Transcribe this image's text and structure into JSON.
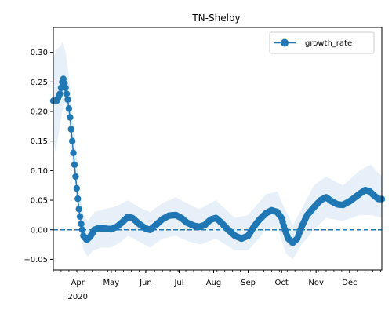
{
  "chart_data": {
    "type": "line",
    "title": "TN-Shelby",
    "xlabel": "",
    "ylabel": "",
    "xlim": [
      "2020-03-10",
      "2020-12-30"
    ],
    "ylim": [
      -0.068,
      0.342
    ],
    "y_ticks": [
      -0.05,
      0.0,
      0.05,
      0.1,
      0.15,
      0.2,
      0.25,
      0.3
    ],
    "y_tick_labels": [
      "−0.05",
      "0.00",
      "0.05",
      "0.10",
      "0.15",
      "0.20",
      "0.25",
      "0.30"
    ],
    "x_ticks": [
      {
        "date": "2020-04-01",
        "label": "Apr"
      },
      {
        "date": "2020-05-01",
        "label": "May"
      },
      {
        "date": "2020-06-01",
        "label": "Jun"
      },
      {
        "date": "2020-07-01",
        "label": "Jul"
      },
      {
        "date": "2020-08-01",
        "label": "Aug"
      },
      {
        "date": "2020-09-01",
        "label": "Sep"
      },
      {
        "date": "2020-10-01",
        "label": "Oct"
      },
      {
        "date": "2020-11-01",
        "label": "Nov"
      },
      {
        "date": "2020-12-01",
        "label": "Dec"
      }
    ],
    "x_year_label": "2020",
    "legend": {
      "position": "upper right",
      "entries": [
        "growth_rate"
      ]
    },
    "reference_line": {
      "y": 0.0,
      "style": "dashed"
    },
    "colors": {
      "series": "#1f77b4",
      "band": "#cfe0f1"
    },
    "series": [
      {
        "name": "growth_rate",
        "points": [
          [
            "2020-03-10",
            0.218
          ],
          [
            "2020-03-13",
            0.218
          ],
          [
            "2020-03-16",
            0.23
          ],
          [
            "2020-03-18",
            0.25
          ],
          [
            "2020-03-19",
            0.255
          ],
          [
            "2020-03-21",
            0.24
          ],
          [
            "2020-03-23",
            0.22
          ],
          [
            "2020-03-25",
            0.19
          ],
          [
            "2020-03-27",
            0.15
          ],
          [
            "2020-03-29",
            0.11
          ],
          [
            "2020-03-31",
            0.07
          ],
          [
            "2020-04-02",
            0.035
          ],
          [
            "2020-04-04",
            0.01
          ],
          [
            "2020-04-06",
            -0.01
          ],
          [
            "2020-04-09",
            -0.017
          ],
          [
            "2020-04-12",
            -0.012
          ],
          [
            "2020-04-16",
            0.0
          ],
          [
            "2020-04-20",
            0.003
          ],
          [
            "2020-04-25",
            0.002
          ],
          [
            "2020-05-01",
            0.001
          ],
          [
            "2020-05-06",
            0.005
          ],
          [
            "2020-05-11",
            0.013
          ],
          [
            "2020-05-16",
            0.022
          ],
          [
            "2020-05-20",
            0.02
          ],
          [
            "2020-05-26",
            0.01
          ],
          [
            "2020-06-01",
            0.002
          ],
          [
            "2020-06-05",
            0.0
          ],
          [
            "2020-06-10",
            0.008
          ],
          [
            "2020-06-16",
            0.018
          ],
          [
            "2020-06-22",
            0.024
          ],
          [
            "2020-06-28",
            0.025
          ],
          [
            "2020-07-03",
            0.02
          ],
          [
            "2020-07-08",
            0.012
          ],
          [
            "2020-07-14",
            0.007
          ],
          [
            "2020-07-19",
            0.005
          ],
          [
            "2020-07-24",
            0.008
          ],
          [
            "2020-07-29",
            0.017
          ],
          [
            "2020-08-03",
            0.02
          ],
          [
            "2020-08-08",
            0.012
          ],
          [
            "2020-08-14",
            0.0
          ],
          [
            "2020-08-20",
            -0.01
          ],
          [
            "2020-08-26",
            -0.015
          ],
          [
            "2020-09-01",
            -0.01
          ],
          [
            "2020-09-06",
            0.005
          ],
          [
            "2020-09-11",
            0.017
          ],
          [
            "2020-09-17",
            0.028
          ],
          [
            "2020-09-22",
            0.033
          ],
          [
            "2020-09-27",
            0.03
          ],
          [
            "2020-10-01",
            0.02
          ],
          [
            "2020-10-04",
            0.0
          ],
          [
            "2020-10-07",
            -0.015
          ],
          [
            "2020-10-11",
            -0.022
          ],
          [
            "2020-10-15",
            -0.015
          ],
          [
            "2020-10-19",
            0.005
          ],
          [
            "2020-10-24",
            0.025
          ],
          [
            "2020-10-30",
            0.038
          ],
          [
            "2020-11-05",
            0.05
          ],
          [
            "2020-11-10",
            0.055
          ],
          [
            "2020-11-15",
            0.048
          ],
          [
            "2020-11-20",
            0.043
          ],
          [
            "2020-11-25",
            0.042
          ],
          [
            "2020-12-01",
            0.048
          ],
          [
            "2020-12-06",
            0.055
          ],
          [
            "2020-12-11",
            0.062
          ],
          [
            "2020-12-15",
            0.067
          ],
          [
            "2020-12-19",
            0.065
          ],
          [
            "2020-12-23",
            0.058
          ],
          [
            "2020-12-27",
            0.052
          ],
          [
            "2020-12-30",
            0.052
          ]
        ],
        "band_lower": [
          [
            "2020-03-10",
            0.15
          ],
          [
            "2020-03-12",
            0.13
          ],
          [
            "2020-03-15",
            0.165
          ],
          [
            "2020-03-18",
            0.2
          ],
          [
            "2020-03-21",
            0.215
          ],
          [
            "2020-03-24",
            0.18
          ],
          [
            "2020-03-27",
            0.12
          ],
          [
            "2020-03-30",
            0.07
          ],
          [
            "2020-04-02",
            0.015
          ],
          [
            "2020-04-06",
            -0.035
          ],
          [
            "2020-04-10",
            -0.045
          ],
          [
            "2020-04-15",
            -0.035
          ],
          [
            "2020-04-22",
            -0.03
          ],
          [
            "2020-05-01",
            -0.03
          ],
          [
            "2020-05-10",
            -0.02
          ],
          [
            "2020-05-16",
            -0.01
          ],
          [
            "2020-05-26",
            -0.02
          ],
          [
            "2020-06-05",
            -0.03
          ],
          [
            "2020-06-16",
            -0.015
          ],
          [
            "2020-06-28",
            -0.01
          ],
          [
            "2020-07-10",
            -0.02
          ],
          [
            "2020-07-20",
            -0.025
          ],
          [
            "2020-08-03",
            -0.015
          ],
          [
            "2020-08-20",
            -0.035
          ],
          [
            "2020-09-01",
            -0.035
          ],
          [
            "2020-09-17",
            0.0
          ],
          [
            "2020-09-27",
            0.005
          ],
          [
            "2020-10-05",
            -0.04
          ],
          [
            "2020-10-11",
            -0.05
          ],
          [
            "2020-10-19",
            -0.025
          ],
          [
            "2020-10-30",
            0.0
          ],
          [
            "2020-11-10",
            0.02
          ],
          [
            "2020-11-25",
            0.015
          ],
          [
            "2020-12-10",
            0.025
          ],
          [
            "2020-12-20",
            0.025
          ],
          [
            "2020-12-30",
            0.02
          ]
        ],
        "band_upper": [
          [
            "2020-03-10",
            0.29
          ],
          [
            "2020-03-13",
            0.305
          ],
          [
            "2020-03-16",
            0.31
          ],
          [
            "2020-03-18",
            0.318
          ],
          [
            "2020-03-21",
            0.3
          ],
          [
            "2020-03-24",
            0.26
          ],
          [
            "2020-03-27",
            0.2
          ],
          [
            "2020-03-30",
            0.145
          ],
          [
            "2020-04-02",
            0.07
          ],
          [
            "2020-04-06",
            0.025
          ],
          [
            "2020-04-10",
            0.015
          ],
          [
            "2020-04-16",
            0.03
          ],
          [
            "2020-04-25",
            0.035
          ],
          [
            "2020-05-06",
            0.04
          ],
          [
            "2020-05-16",
            0.05
          ],
          [
            "2020-05-26",
            0.038
          ],
          [
            "2020-06-05",
            0.03
          ],
          [
            "2020-06-16",
            0.045
          ],
          [
            "2020-06-28",
            0.055
          ],
          [
            "2020-07-08",
            0.045
          ],
          [
            "2020-07-19",
            0.035
          ],
          [
            "2020-08-03",
            0.05
          ],
          [
            "2020-08-20",
            0.02
          ],
          [
            "2020-09-01",
            0.025
          ],
          [
            "2020-09-17",
            0.06
          ],
          [
            "2020-09-27",
            0.065
          ],
          [
            "2020-10-04",
            0.035
          ],
          [
            "2020-10-11",
            0.008
          ],
          [
            "2020-10-19",
            0.035
          ],
          [
            "2020-10-30",
            0.075
          ],
          [
            "2020-11-10",
            0.09
          ],
          [
            "2020-11-25",
            0.075
          ],
          [
            "2020-12-10",
            0.1
          ],
          [
            "2020-12-20",
            0.11
          ],
          [
            "2020-12-30",
            0.09
          ]
        ]
      }
    ]
  }
}
